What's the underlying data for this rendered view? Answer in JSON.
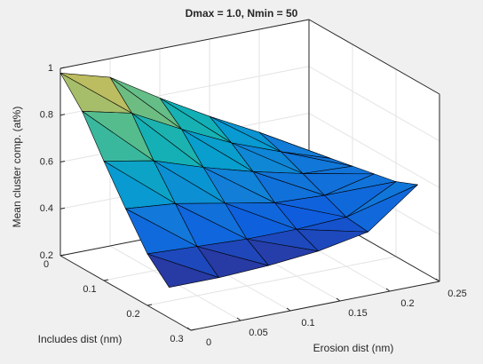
{
  "chart_data": {
    "type": "surface",
    "title": "Dmax = 1.0, Nmin = 50",
    "xlabel": "Erosion dist (nm)",
    "ylabel": "Includes dist (nm)",
    "zlabel": "Mean cluster comp. (at%)",
    "x": [
      0,
      0.05,
      0.1,
      0.15,
      0.2,
      0.25
    ],
    "y": [
      0,
      0.05,
      0.1,
      0.15,
      0.2,
      0.25
    ],
    "z": [
      [
        0.98,
        0.92,
        0.79,
        0.67,
        0.56,
        0.44
      ],
      [
        0.87,
        0.82,
        0.71,
        0.61,
        0.53,
        0.46
      ],
      [
        0.71,
        0.67,
        0.6,
        0.54,
        0.49,
        0.48
      ],
      [
        0.56,
        0.54,
        0.5,
        0.46,
        0.45,
        0.5
      ],
      [
        0.42,
        0.41,
        0.4,
        0.4,
        0.41,
        0.52
      ],
      [
        0.33,
        0.33,
        0.34,
        0.36,
        0.4,
        0.56
      ]
    ],
    "xlim": [
      0,
      0.25
    ],
    "ylim": [
      0,
      0.3
    ],
    "zlim": [
      0.2,
      1
    ],
    "xticks": [
      0,
      0.05,
      0.1,
      0.15,
      0.2,
      0.25
    ],
    "yticks": [
      0,
      0.1,
      0.2,
      0.3
    ],
    "zticks": [
      0.2,
      0.4,
      0.6,
      0.8,
      1
    ],
    "grid": true,
    "colormap": "parula",
    "edgecolor": "#000000"
  }
}
